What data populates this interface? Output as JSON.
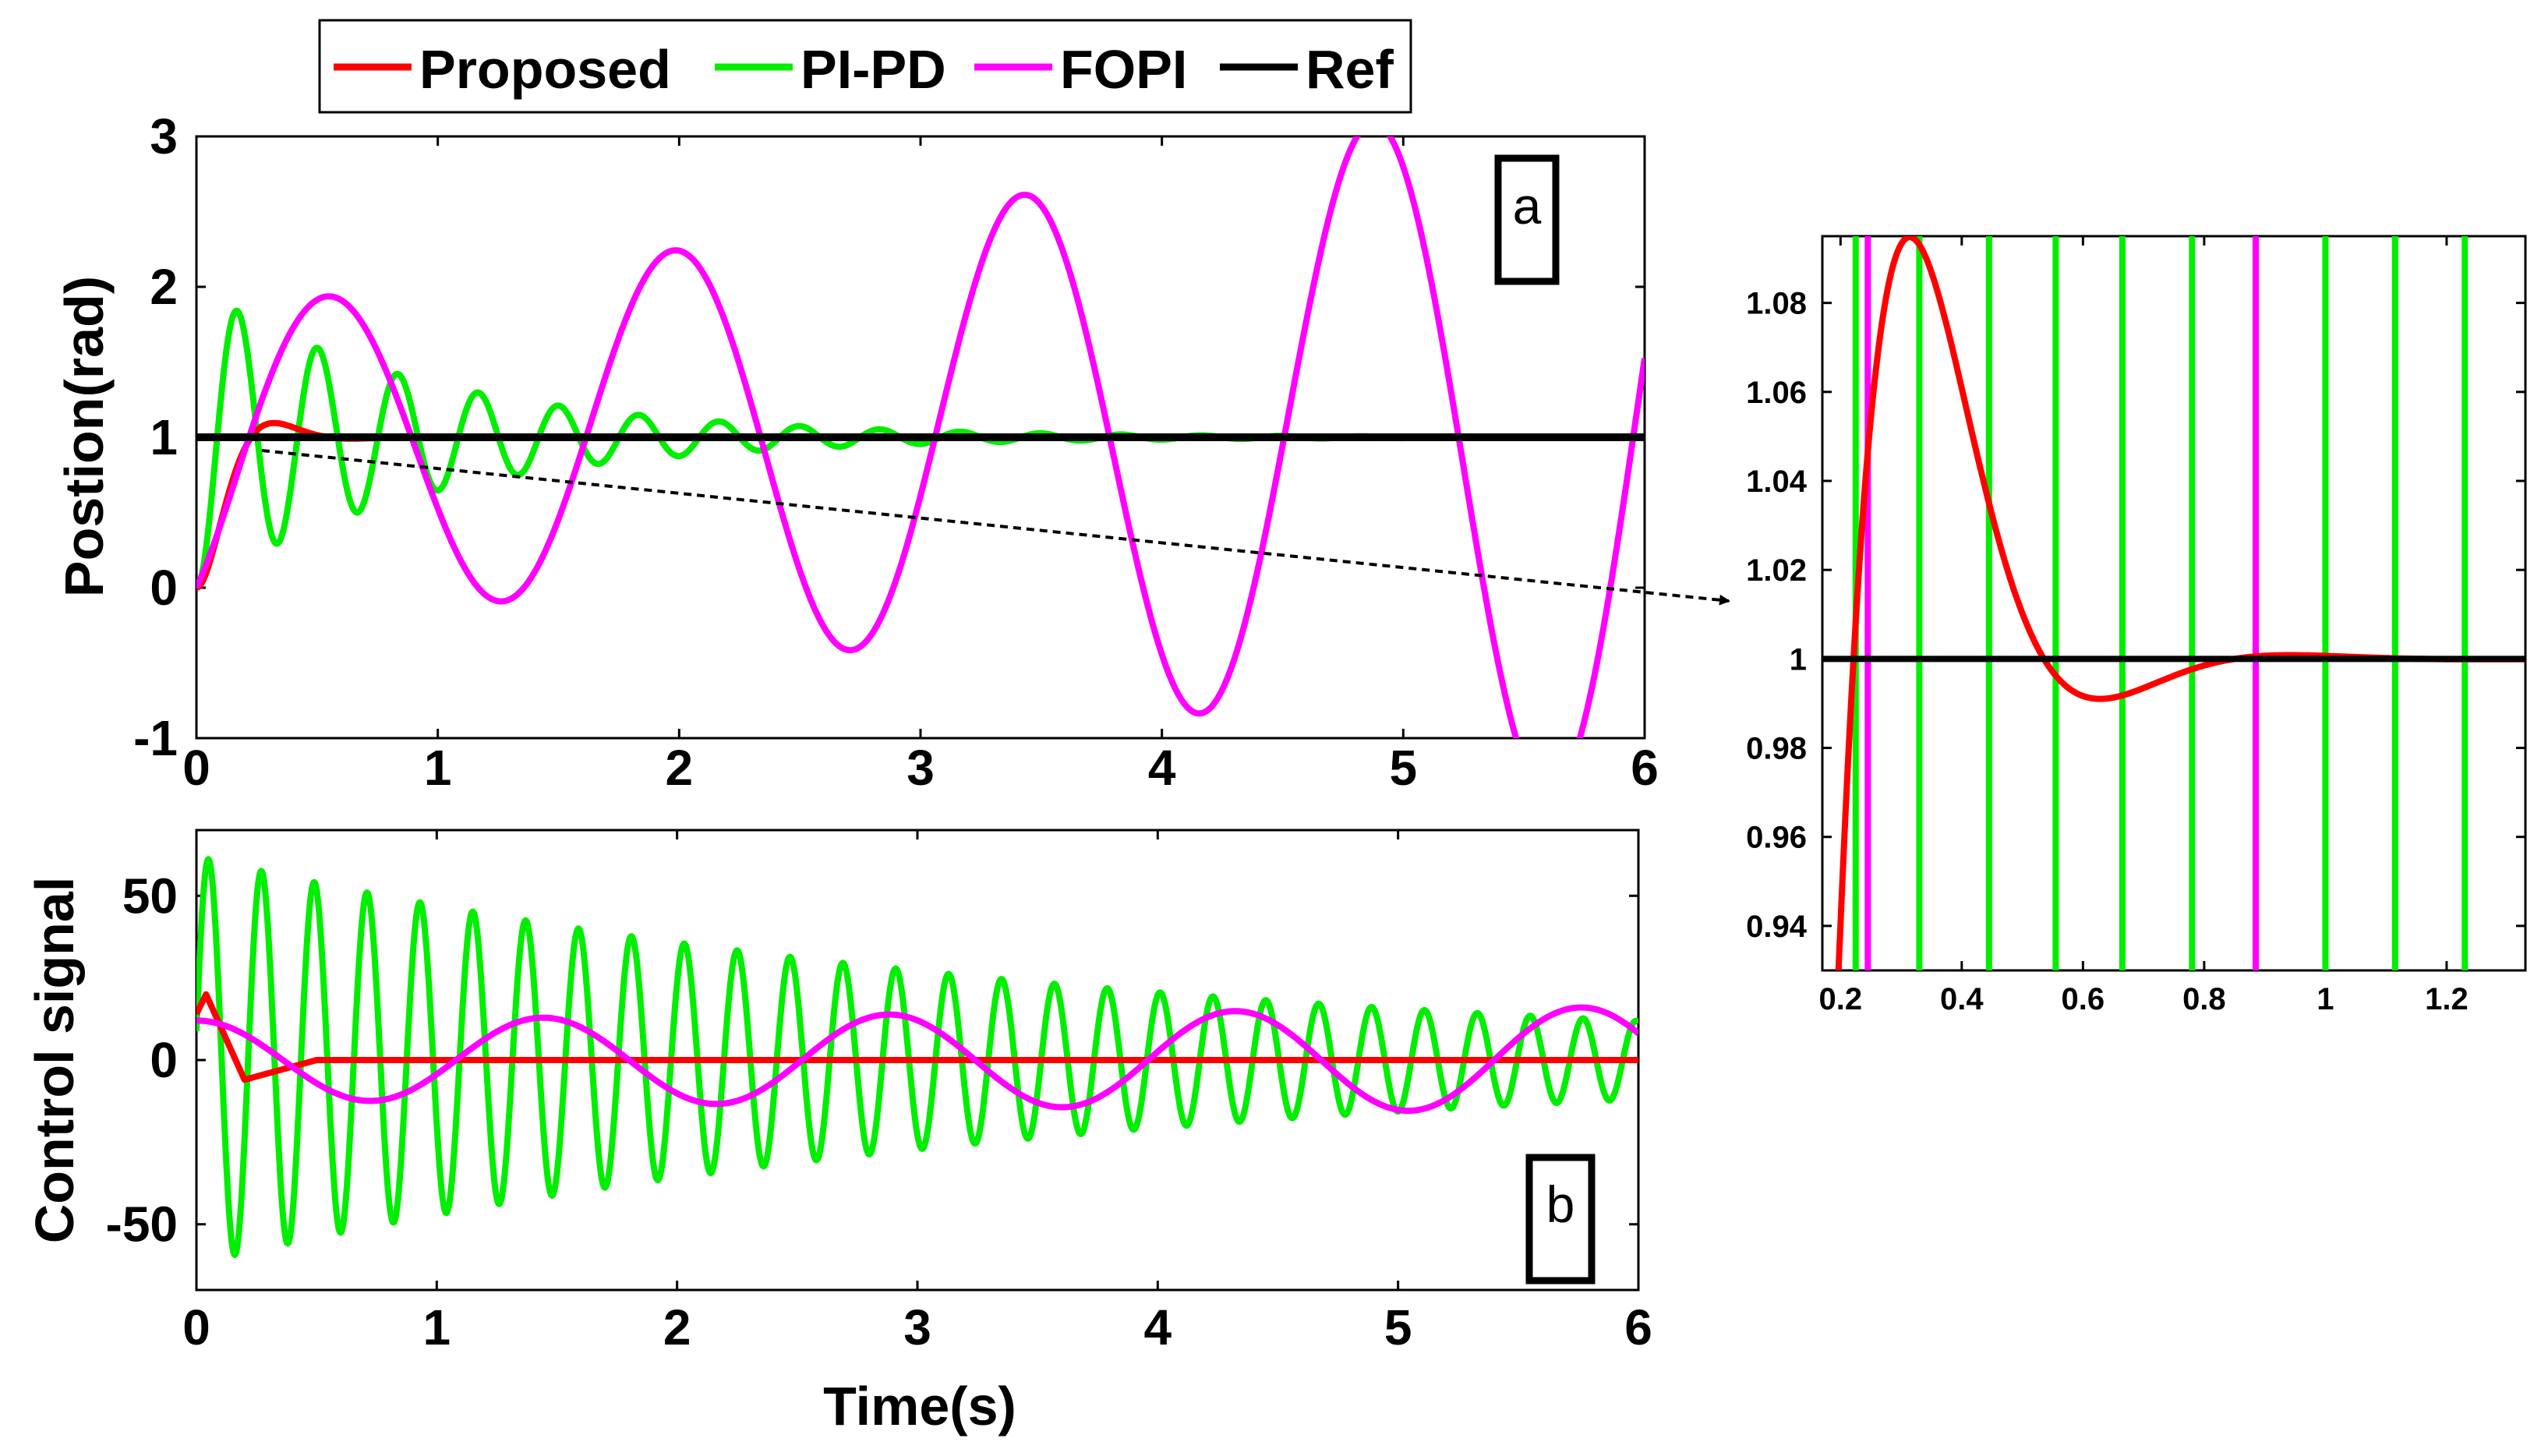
{
  "colors": {
    "proposed": "#ff0000",
    "pipd": "#00ee00",
    "fopi": "#ff00ff",
    "ref": "#000000"
  },
  "legend": [
    {
      "label": "Proposed",
      "color": "#ff0000"
    },
    {
      "label": "PI-PD",
      "color": "#00ee00"
    },
    {
      "label": "FOPI",
      "color": "#ff00ff"
    },
    {
      "label": "Ref",
      "color": "#000000"
    }
  ],
  "chart_data": [
    {
      "id": "position",
      "type": "line",
      "panel_label": "a",
      "xlabel": "",
      "ylabel": "Postion(rad)",
      "xlim": [
        0,
        6
      ],
      "ylim": [
        -1,
        3
      ],
      "xticks": [
        0,
        1,
        2,
        3,
        4,
        5,
        6
      ],
      "xtick_labels": [
        "0",
        "1",
        "2",
        "3",
        "4",
        "5",
        "6"
      ],
      "yticks": [
        -1,
        0,
        1,
        2,
        3
      ],
      "ytick_labels": [
        "-1",
        "0",
        "1",
        "2",
        "3"
      ],
      "series": [
        {
          "name": "Proposed",
          "model": "step",
          "params": {
            "os": 0.09,
            "tp": 0.27,
            "wn": 12.2,
            "zeta": 0.6
          }
        },
        {
          "name": "PI-PD",
          "model": "step",
          "params": {
            "os": 0.71,
            "tp": 0.17,
            "wn": 18.9,
            "zeta": 0.055
          }
        },
        {
          "name": "FOPI",
          "model": "growing_sine",
          "params": {
            "amp0": 0.87,
            "growth": 0.18,
            "period": 1.446,
            "peak": 0.53,
            "step_tau": 0.12
          }
        },
        {
          "name": "Ref",
          "model": "constant",
          "params": {
            "value": 1
          }
        }
      ]
    },
    {
      "id": "control",
      "type": "line",
      "panel_label": "b",
      "xlabel": "Time(s)",
      "ylabel": "Control signal",
      "xlim": [
        0,
        6
      ],
      "ylim": [
        -70,
        70
      ],
      "xticks": [
        0,
        1,
        2,
        3,
        4,
        5,
        6
      ],
      "xtick_labels": [
        "0",
        "1",
        "2",
        "3",
        "4",
        "5",
        "6"
      ],
      "yticks": [
        -50,
        0,
        50
      ],
      "ytick_labels": [
        "-50",
        "0",
        "50"
      ],
      "series": [
        {
          "name": "Proposed",
          "model": "decay_pulse",
          "params": {
            "peak": 20,
            "t_peak": 0.04,
            "undershoot": -6,
            "t_under": 0.2,
            "settle": 0.5
          }
        },
        {
          "name": "PI-PD",
          "model": "damped_sine",
          "params": {
            "amp0": 62,
            "decay": 0.275,
            "period": 0.22,
            "phase_peak": 0.05
          }
        },
        {
          "name": "FOPI",
          "model": "growing_sine",
          "params": {
            "amp0": 12,
            "growth": 0.05,
            "period": 1.44,
            "peak": 0.0,
            "offset": 0
          }
        }
      ]
    },
    {
      "id": "zoom",
      "type": "line",
      "panel_label": "",
      "xlabel": "",
      "ylabel": "",
      "xlim": [
        0.17,
        1.33
      ],
      "ylim": [
        0.93,
        1.095
      ],
      "xticks": [
        0.2,
        0.4,
        0.6,
        0.8,
        1.0,
        1.2
      ],
      "xtick_labels": [
        "0.2",
        "0.4",
        "0.6",
        "0.8",
        "1",
        "1.2"
      ],
      "yticks": [
        0.94,
        0.96,
        0.98,
        1.0,
        1.02,
        1.04,
        1.06,
        1.08
      ],
      "ytick_labels": [
        "0.94",
        "0.96",
        "0.98",
        "1",
        "1.02",
        "1.04",
        "1.06",
        "1.08"
      ],
      "series": [
        {
          "name": "Proposed",
          "model": "step",
          "params": {
            "os": 0.092,
            "tp": 0.265,
            "wn": 12.5,
            "zeta": 0.6
          }
        },
        {
          "name": "PI-PD",
          "model": "vertical_lines",
          "params": {
            "x": [
              0.225,
              0.33,
              0.445,
              0.555,
              0.665,
              0.78,
              0.885,
              1.0,
              1.115,
              1.23
            ]
          }
        },
        {
          "name": "FOPI",
          "model": "vertical_lines",
          "params": {
            "x": [
              0.245,
              0.885
            ]
          }
        },
        {
          "name": "Ref",
          "model": "constant",
          "params": {
            "value": 1
          }
        }
      ]
    }
  ],
  "annotation": {
    "type": "arrow",
    "from_panel": "position",
    "to_panel": "zoom"
  }
}
